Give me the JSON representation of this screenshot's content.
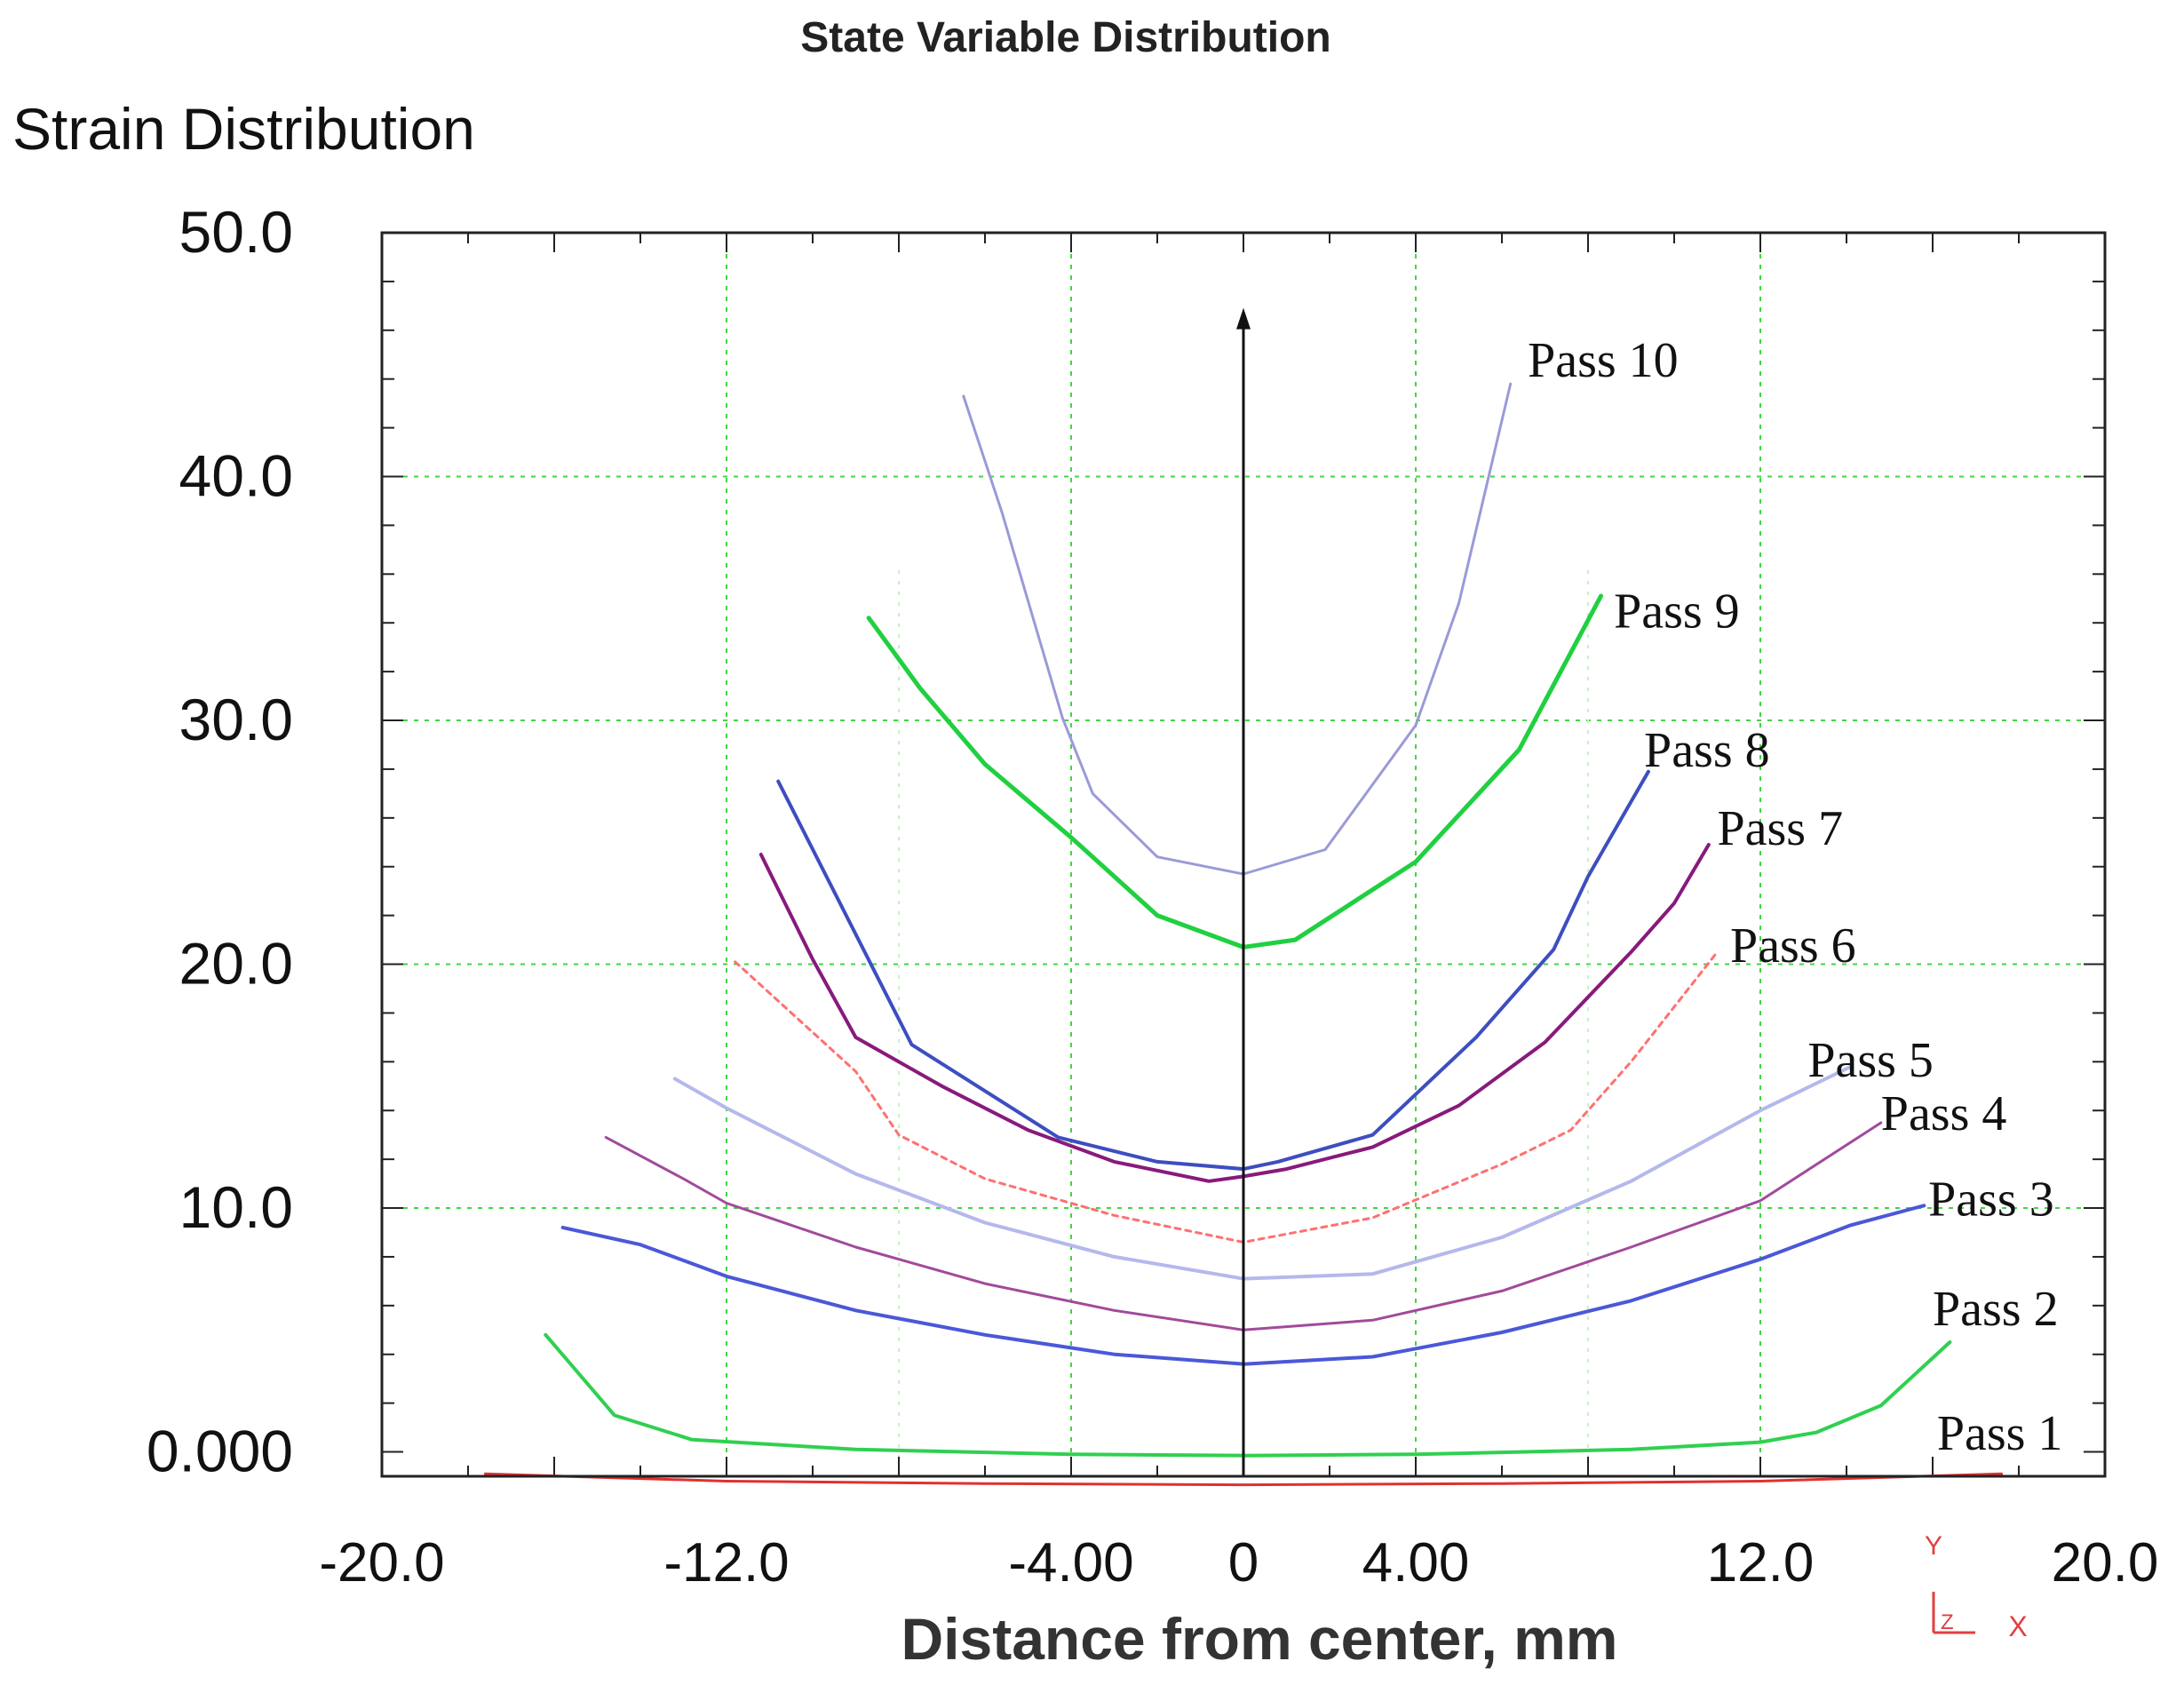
{
  "chart_data": {
    "type": "line",
    "title": "State Variable Distribution",
    "ylabel": "Strain Distribution",
    "xlabel": "Distance from center, mm",
    "xlim": [
      -20,
      20
    ],
    "ylim": [
      -1,
      50
    ],
    "x_ticks": [
      {
        "value": -20,
        "label": "-20.0"
      },
      {
        "value": -12,
        "label": "-12.0"
      },
      {
        "value": -4,
        "label": "-4.00"
      },
      {
        "value": 0,
        "label": "0"
      },
      {
        "value": 4,
        "label": "4.00"
      },
      {
        "value": 12,
        "label": "12.0"
      },
      {
        "value": 20,
        "label": "20.0"
      }
    ],
    "y_ticks": [
      {
        "value": 0,
        "label": "0.000"
      },
      {
        "value": 10,
        "label": "10.0"
      },
      {
        "value": 20,
        "label": "20.0"
      },
      {
        "value": 30,
        "label": "30.0"
      },
      {
        "value": 40,
        "label": "40.0"
      },
      {
        "value": 50,
        "label": "50.0"
      }
    ],
    "grid_x": [
      -12,
      -4,
      4,
      12
    ],
    "grid_y": [
      10,
      20,
      30,
      40
    ],
    "axis_glyph": {
      "y": "Y",
      "z": "Z",
      "x": "X"
    },
    "series": [
      {
        "name": "Pass 1",
        "label": "Pass 1",
        "color": "#e03030",
        "width": 3,
        "dash": false,
        "label_at": [
          16.1,
          0.1
        ],
        "x": [
          -17.6,
          -12,
          -6,
          0,
          6,
          12,
          17.6
        ],
        "y": [
          -0.9,
          -1.2,
          -1.3,
          -1.35,
          -1.3,
          -1.2,
          -0.9
        ]
      },
      {
        "name": "Pass 2",
        "label": "Pass 2",
        "color": "#30d050",
        "width": 4,
        "dash": false,
        "label_at": [
          16,
          5.2
        ],
        "x": [
          -16.2,
          -14.6,
          -12.8,
          -9,
          -4,
          0,
          4,
          9,
          12,
          13.3,
          14.8,
          16.4
        ],
        "y": [
          4.8,
          1.5,
          0.5,
          0.1,
          -0.1,
          -0.15,
          -0.1,
          0.1,
          0.4,
          0.8,
          1.9,
          4.5
        ]
      },
      {
        "name": "Pass 3",
        "label": "Pass 3",
        "color": "#4a58d8",
        "width": 4,
        "dash": false,
        "label_at": [
          15.9,
          9.7
        ],
        "x": [
          -15.8,
          -14,
          -12,
          -9,
          -6,
          -3,
          0,
          3,
          6,
          9,
          12,
          14.1,
          15.8
        ],
        "y": [
          9.2,
          8.5,
          7.2,
          5.8,
          4.8,
          4.0,
          3.6,
          3.9,
          4.9,
          6.2,
          7.9,
          9.3,
          10.1
        ]
      },
      {
        "name": "Pass 4",
        "label": "Pass 4",
        "color": "#a24a9a",
        "width": 3,
        "dash": false,
        "label_at": [
          14.8,
          13.2
        ],
        "x": [
          -14.8,
          -13,
          -12,
          -9,
          -6,
          -3,
          0,
          3,
          6,
          9,
          12,
          14.8
        ],
        "y": [
          12.9,
          11.2,
          10.2,
          8.4,
          6.9,
          5.8,
          5.0,
          5.4,
          6.6,
          8.4,
          10.3,
          13.5
        ]
      },
      {
        "name": "Pass 5",
        "label": "Pass 5",
        "color": "#b4b8ec",
        "width": 4,
        "dash": false,
        "label_at": [
          13.1,
          15.4
        ],
        "x": [
          -13.2,
          -12,
          -9,
          -6,
          -3,
          0,
          3,
          6,
          9,
          12,
          14.1
        ],
        "y": [
          15.3,
          14.1,
          11.4,
          9.4,
          8.0,
          7.1,
          7.3,
          8.8,
          11.1,
          14.0,
          15.8
        ]
      },
      {
        "name": "Pass 6",
        "label": "Pass 6",
        "color": "#ff7070",
        "width": 3,
        "dash": true,
        "label_at": [
          11.3,
          20.1
        ],
        "x": [
          -11.8,
          -9,
          -8,
          -6,
          -3,
          0,
          3,
          6,
          7.6,
          9,
          11
        ],
        "y": [
          20.1,
          15.6,
          13.0,
          11.2,
          9.7,
          8.6,
          9.6,
          11.8,
          13.2,
          16.0,
          20.5
        ]
      },
      {
        "name": "Pass 7",
        "label": "Pass 7",
        "color": "#881a7c",
        "width": 4,
        "dash": false,
        "label_at": [
          11,
          24.9
        ],
        "x": [
          -11.2,
          -10,
          -9,
          -7,
          -5,
          -3,
          -0.8,
          0,
          1,
          3,
          5,
          7,
          9,
          10,
          10.8
        ],
        "y": [
          24.5,
          20.2,
          17.0,
          15.0,
          13.2,
          11.9,
          11.1,
          11.3,
          11.6,
          12.5,
          14.2,
          16.8,
          20.5,
          22.5,
          24.9
        ]
      },
      {
        "name": "Pass 8",
        "label": "Pass 8",
        "color": "#3d4ec0",
        "width": 4,
        "dash": false,
        "label_at": [
          9.3,
          28.1
        ],
        "x": [
          -10.8,
          -7.7,
          -4.3,
          -2,
          0,
          0.8,
          3,
          5.4,
          7.2,
          8,
          9.4
        ],
        "y": [
          27.5,
          16.7,
          12.9,
          11.9,
          11.6,
          11.9,
          13.0,
          17.0,
          20.6,
          23.6,
          27.9
        ]
      },
      {
        "name": "Pass 9",
        "label": "Pass 9",
        "color": "#20d040",
        "width": 5,
        "dash": false,
        "label_at": [
          8.6,
          33.8
        ],
        "x": [
          -8.7,
          -7.5,
          -6,
          -4,
          -2,
          0,
          1.2,
          4,
          6.4,
          8.3
        ],
        "y": [
          34.2,
          31.3,
          28.2,
          25.2,
          22.0,
          20.7,
          21.0,
          24.2,
          28.8,
          35.1
        ]
      },
      {
        "name": "Pass 10",
        "label": "Pass 10",
        "color": "#9a9ad8",
        "width": 3,
        "dash": false,
        "label_at": [
          6.6,
          44.1
        ],
        "x": [
          -6.5,
          -5.6,
          -4.2,
          -3.5,
          -2,
          0,
          1.9,
          4,
          5,
          6.2
        ],
        "y": [
          43.3,
          38.5,
          30.1,
          27.0,
          24.4,
          23.7,
          24.7,
          29.8,
          34.8,
          43.8
        ]
      }
    ]
  }
}
